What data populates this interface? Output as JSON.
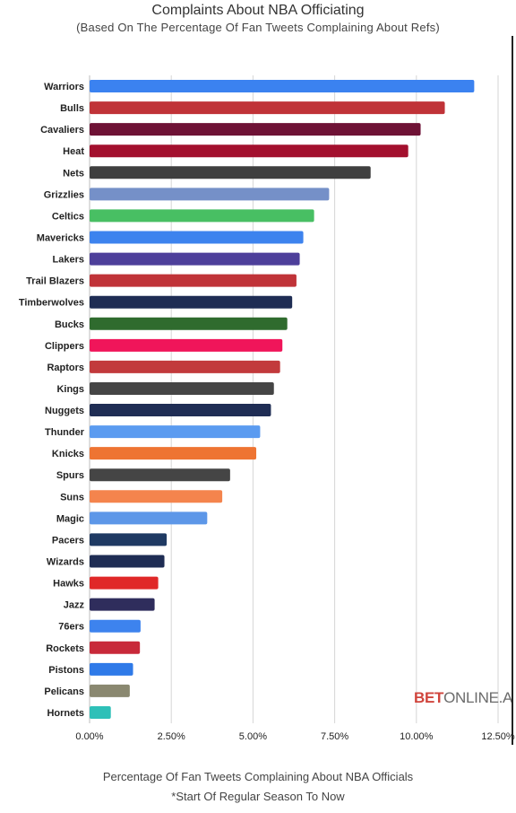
{
  "chart_data": {
    "type": "bar",
    "orientation": "horizontal",
    "title": "Complaints About NBA Officiating",
    "subtitle": "(Based On The Percentage Of Fan Tweets Complaining About Refs)",
    "xlabel": "Percentage Of Fan Tweets Complaining About NBA Officials",
    "note": "*Start Of Regular Season To Now",
    "xlim": [
      0,
      12.5
    ],
    "x_ticks": [
      "0.00%",
      "2.50%",
      "5.00%",
      "7.50%",
      "10.00%",
      "12.50%"
    ],
    "grid": "vertical",
    "categories": [
      "Warriors",
      "Bulls",
      "Cavaliers",
      "Heat",
      "Nets",
      "Grizzlies",
      "Celtics",
      "Mavericks",
      "Lakers",
      "Trail Blazers",
      "Timberwolves",
      "Bucks",
      "Clippers",
      "Raptors",
      "Kings",
      "Nuggets",
      "Thunder",
      "Knicks",
      "Spurs",
      "Suns",
      "Magic",
      "Pacers",
      "Wizards",
      "Hawks",
      "Jazz",
      "76ers",
      "Rockets",
      "Pistons",
      "Pelicans",
      "Hornets"
    ],
    "values": [
      11.77,
      10.87,
      10.13,
      9.75,
      8.6,
      7.33,
      6.87,
      6.54,
      6.43,
      6.33,
      6.2,
      6.05,
      5.9,
      5.83,
      5.64,
      5.55,
      5.22,
      5.1,
      4.3,
      4.06,
      3.6,
      2.36,
      2.29,
      2.1,
      1.99,
      1.56,
      1.54,
      1.33,
      1.23,
      0.65
    ],
    "colors": [
      "#3b82f0",
      "#c03338",
      "#6e1235",
      "#a3102e",
      "#3f3f3f",
      "#7590c8",
      "#48bf63",
      "#3d83ee",
      "#4d3f9a",
      "#c03338",
      "#1f2d54",
      "#2f6b2e",
      "#f0155a",
      "#c23a3c",
      "#454545",
      "#1f2d54",
      "#5b9bf0",
      "#ee7432",
      "#454545",
      "#f4844d",
      "#5d97e8",
      "#1f3a63",
      "#1f2d54",
      "#e02828",
      "#2f2d5c",
      "#3d83ee",
      "#c8293a",
      "#2f7ae8",
      "#8a8870",
      "#2ec0b8"
    ]
  },
  "watermark": {
    "part1": "BET",
    "part2": "ONLINE.A"
  }
}
